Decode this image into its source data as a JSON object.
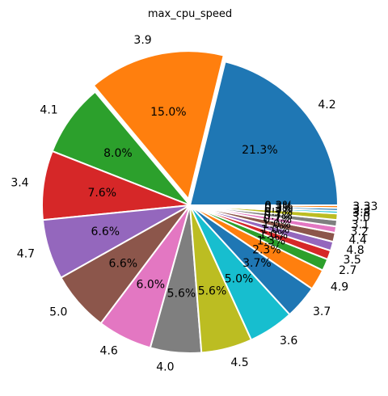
{
  "chart_data": {
    "type": "pie",
    "title": "max_cpu_speed",
    "categories": [
      "4.2",
      "3.9",
      "4.1",
      "3.4",
      "4.7",
      "5.0",
      "4.6",
      "4.0",
      "4.5",
      "3.6",
      "3.7",
      "4.9",
      "2.7",
      "3.5",
      "4.8",
      "4.4",
      "3.2",
      "3.1",
      "3.0",
      "3.8",
      "3.3",
      "3.33"
    ],
    "values": [
      21.3,
      15.0,
      8.0,
      7.6,
      6.6,
      6.6,
      6.0,
      5.6,
      5.6,
      5.0,
      3.7,
      2.3,
      1.3,
      1.0,
      1.0,
      1.0,
      0.7,
      0.7,
      0.7,
      0.3,
      0.3,
      0.3
    ],
    "percent_labels": [
      "21.3%",
      "15.0%",
      "8.0%",
      "7.6%",
      "6.6%",
      "6.6%",
      "6.0%",
      "5.6%",
      "5.6%",
      "5.0%",
      "3.7%",
      "2.3%",
      "1.3%",
      "1.0%",
      "1.0%",
      "1.0%",
      "0.7%",
      "0.7%",
      "0.7%",
      "0.3%",
      "0.3%",
      "0.3%"
    ],
    "colors": [
      "#1f77b4",
      "#ff7f0e",
      "#2ca02c",
      "#d62728",
      "#9467bd",
      "#8c564b",
      "#e377c2",
      "#7f7f7f",
      "#bcbd22",
      "#17becf",
      "#1f77b4",
      "#ff7f0e",
      "#2ca02c",
      "#d62728",
      "#9467bd",
      "#8c564b",
      "#e377c2",
      "#7f7f7f",
      "#bcbd22",
      "#17becf",
      "#1f77b4",
      "#ff7f0e"
    ],
    "start_angle_deg": 0,
    "direction": "counterclockwise",
    "exploded_slices": [
      "3.9"
    ],
    "legend": "none"
  }
}
